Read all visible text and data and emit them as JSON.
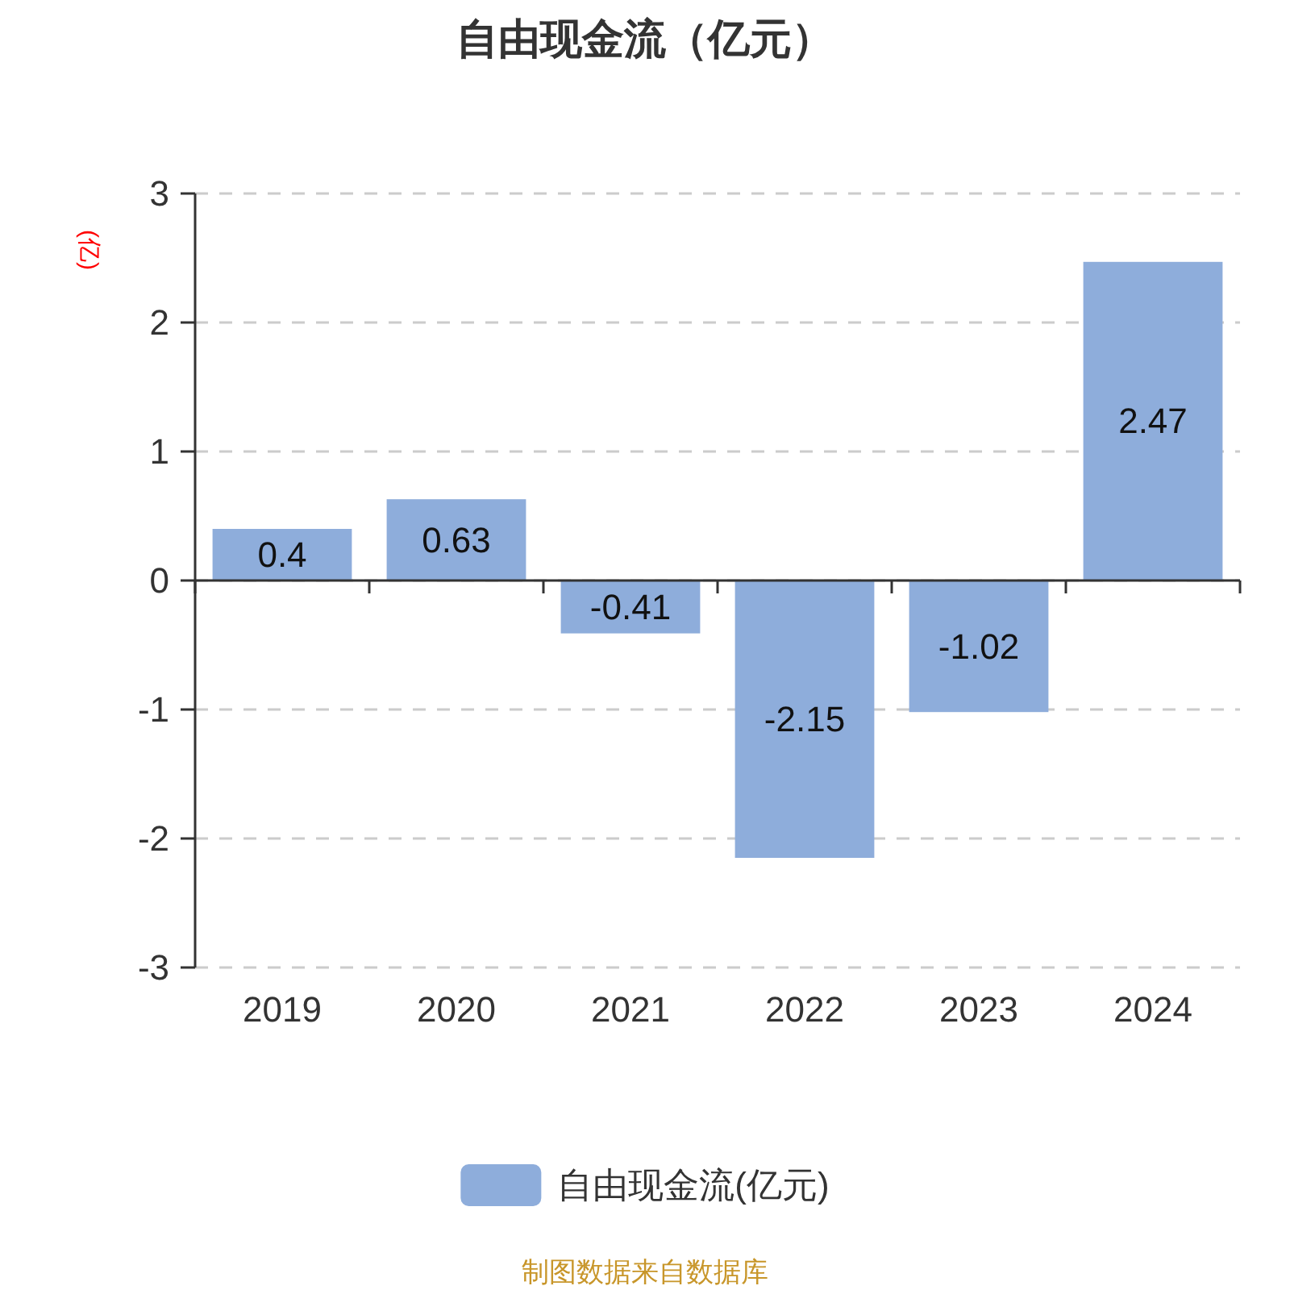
{
  "chart_data": {
    "type": "bar",
    "title": "自由现金流（亿元）",
    "ylabel": "(亿)",
    "categories": [
      "2019",
      "2020",
      "2021",
      "2022",
      "2023",
      "2024"
    ],
    "series": [
      {
        "name": "自由现金流(亿元)",
        "color": "#8eaddb",
        "values": [
          0.4,
          0.63,
          -0.41,
          -2.15,
          -1.02,
          2.47
        ]
      }
    ],
    "ylim": [
      -3,
      3
    ],
    "yticks": [
      -3,
      -2,
      -1,
      0,
      1,
      2,
      3
    ],
    "grid": "y",
    "legend": "bottom",
    "data_labels": true,
    "annotations": [
      "制图数据来自数据库"
    ]
  }
}
